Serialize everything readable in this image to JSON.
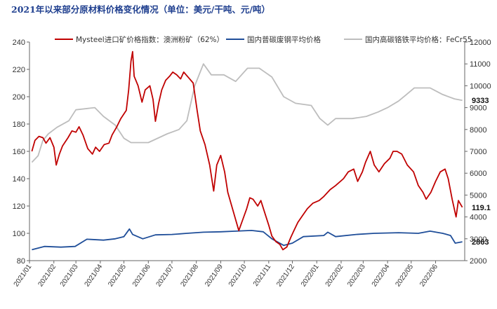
{
  "chart_data": {
    "type": "line",
    "title": "2021年以来部分原材料价格变化情况（单位：美元/干吨、元/吨）",
    "xlabel": "",
    "ylabel": "",
    "x_ticks": [
      "2021/01",
      "2021/02",
      "2021/03",
      "2021/04",
      "2021/05",
      "2021/06",
      "2021/07",
      "2021/08",
      "2021/09",
      "2021/10",
      "2021/11",
      "2021/12",
      "2022/01",
      "2022/02",
      "2022/03",
      "2022/04",
      "2022/05",
      "2022/06"
    ],
    "y_left": {
      "range": [
        80,
        240
      ],
      "ticks": [
        80,
        100,
        120,
        140,
        160,
        180,
        200,
        220,
        240
      ]
    },
    "y_right": {
      "range": [
        2000,
        12000
      ],
      "ticks": [
        2000,
        3000,
        4000,
        5000,
        6000,
        7000,
        8000,
        9000,
        10000,
        11000,
        12000
      ]
    },
    "legend_position": "top",
    "grid": false,
    "series": [
      {
        "name": "Mysteel进口矿价格指数：澳洲粉矿（62%）",
        "axis": "left",
        "color": "#c00000",
        "end_label": "119.1",
        "points": [
          [
            "2021-01-04",
            160
          ],
          [
            "2021-01-08",
            168
          ],
          [
            "2021-01-13",
            171
          ],
          [
            "2021-01-18",
            170
          ],
          [
            "2021-01-22",
            166
          ],
          [
            "2021-01-27",
            170
          ],
          [
            "2021-02-01",
            163
          ],
          [
            "2021-02-04",
            150
          ],
          [
            "2021-02-08",
            158
          ],
          [
            "2021-02-12",
            164
          ],
          [
            "2021-02-19",
            170
          ],
          [
            "2021-02-24",
            175
          ],
          [
            "2021-03-01",
            174
          ],
          [
            "2021-03-05",
            178
          ],
          [
            "2021-03-10",
            172
          ],
          [
            "2021-03-16",
            162
          ],
          [
            "2021-03-22",
            158
          ],
          [
            "2021-03-26",
            163
          ],
          [
            "2021-03-31",
            160
          ],
          [
            "2021-04-06",
            165
          ],
          [
            "2021-04-12",
            166
          ],
          [
            "2021-04-16",
            172
          ],
          [
            "2021-04-22",
            178
          ],
          [
            "2021-04-27",
            184
          ],
          [
            "2021-05-04",
            190
          ],
          [
            "2021-05-07",
            205
          ],
          [
            "2021-05-10",
            226
          ],
          [
            "2021-05-12",
            233
          ],
          [
            "2021-05-14",
            215
          ],
          [
            "2021-05-19",
            208
          ],
          [
            "2021-05-24",
            196
          ],
          [
            "2021-05-28",
            205
          ],
          [
            "2021-06-03",
            208
          ],
          [
            "2021-06-07",
            198
          ],
          [
            "2021-06-10",
            182
          ],
          [
            "2021-06-14",
            195
          ],
          [
            "2021-06-18",
            205
          ],
          [
            "2021-06-23",
            212
          ],
          [
            "2021-06-28",
            215
          ],
          [
            "2021-07-02",
            218
          ],
          [
            "2021-07-07",
            216
          ],
          [
            "2021-07-12",
            213
          ],
          [
            "2021-07-16",
            218
          ],
          [
            "2021-07-22",
            214
          ],
          [
            "2021-07-28",
            210
          ],
          [
            "2021-08-02",
            190
          ],
          [
            "2021-08-06",
            175
          ],
          [
            "2021-08-12",
            165
          ],
          [
            "2021-08-18",
            150
          ],
          [
            "2021-08-23",
            131
          ],
          [
            "2021-08-27",
            150
          ],
          [
            "2021-09-01",
            157
          ],
          [
            "2021-09-06",
            145
          ],
          [
            "2021-09-10",
            130
          ],
          [
            "2021-09-15",
            120
          ],
          [
            "2021-09-20",
            110
          ],
          [
            "2021-09-24",
            102
          ],
          [
            "2021-09-29",
            110
          ],
          [
            "2021-10-04",
            118
          ],
          [
            "2021-10-08",
            126
          ],
          [
            "2021-10-12",
            125
          ],
          [
            "2021-10-18",
            120
          ],
          [
            "2021-10-22",
            124
          ],
          [
            "2021-10-27",
            115
          ],
          [
            "2021-11-01",
            106
          ],
          [
            "2021-11-05",
            98
          ],
          [
            "2021-11-10",
            94
          ],
          [
            "2021-11-15",
            92
          ],
          [
            "2021-11-19",
            88
          ],
          [
            "2021-11-24",
            90
          ],
          [
            "2021-11-29",
            97
          ],
          [
            "2021-12-03",
            102
          ],
          [
            "2021-12-08",
            108
          ],
          [
            "2021-12-14",
            113
          ],
          [
            "2021-12-20",
            118
          ],
          [
            "2021-12-27",
            122
          ],
          [
            "2022-01-04",
            124
          ],
          [
            "2022-01-10",
            127
          ],
          [
            "2022-01-18",
            132
          ],
          [
            "2022-01-25",
            135
          ],
          [
            "2022-02-04",
            140
          ],
          [
            "2022-02-10",
            145
          ],
          [
            "2022-02-17",
            147
          ],
          [
            "2022-02-22",
            138
          ],
          [
            "2022-02-28",
            145
          ],
          [
            "2022-03-04",
            152
          ],
          [
            "2022-03-10",
            160
          ],
          [
            "2022-03-15",
            150
          ],
          [
            "2022-03-21",
            145
          ],
          [
            "2022-03-28",
            151
          ],
          [
            "2022-04-04",
            155
          ],
          [
            "2022-04-08",
            160
          ],
          [
            "2022-04-13",
            160
          ],
          [
            "2022-04-19",
            158
          ],
          [
            "2022-04-26",
            150
          ],
          [
            "2022-05-04",
            145
          ],
          [
            "2022-05-10",
            135
          ],
          [
            "2022-05-16",
            130
          ],
          [
            "2022-05-20",
            125
          ],
          [
            "2022-05-26",
            130
          ],
          [
            "2022-06-01",
            138
          ],
          [
            "2022-06-07",
            145
          ],
          [
            "2022-06-13",
            147
          ],
          [
            "2022-06-17",
            140
          ],
          [
            "2022-06-22",
            125
          ],
          [
            "2022-06-27",
            112
          ],
          [
            "2022-06-30",
            124
          ],
          [
            "2022-07-05",
            119.1
          ]
        ]
      },
      {
        "name": "国内普碳废钢平均价格",
        "axis": "right",
        "color": "#1f4e99",
        "end_label": "2863",
        "points": [
          [
            "2021-01-04",
            2500
          ],
          [
            "2021-01-20",
            2650
          ],
          [
            "2021-02-10",
            2620
          ],
          [
            "2021-02-28",
            2650
          ],
          [
            "2021-03-15",
            2980
          ],
          [
            "2021-04-05",
            2940
          ],
          [
            "2021-04-20",
            3000
          ],
          [
            "2021-05-01",
            3100
          ],
          [
            "2021-05-08",
            3450
          ],
          [
            "2021-05-12",
            3200
          ],
          [
            "2021-05-25",
            3000
          ],
          [
            "2021-06-10",
            3180
          ],
          [
            "2021-07-01",
            3200
          ],
          [
            "2021-07-20",
            3250
          ],
          [
            "2021-08-10",
            3300
          ],
          [
            "2021-09-01",
            3320
          ],
          [
            "2021-09-20",
            3350
          ],
          [
            "2021-10-10",
            3380
          ],
          [
            "2021-10-25",
            3320
          ],
          [
            "2021-11-05",
            3000
          ],
          [
            "2021-11-20",
            2700
          ],
          [
            "2021-12-01",
            2800
          ],
          [
            "2021-12-15",
            3100
          ],
          [
            "2022-01-10",
            3150
          ],
          [
            "2022-01-15",
            3300
          ],
          [
            "2022-01-25",
            3100
          ],
          [
            "2022-02-20",
            3200
          ],
          [
            "2022-03-15",
            3250
          ],
          [
            "2022-04-15",
            3280
          ],
          [
            "2022-05-10",
            3250
          ],
          [
            "2022-05-25",
            3350
          ],
          [
            "2022-06-10",
            3250
          ],
          [
            "2022-06-20",
            3150
          ],
          [
            "2022-06-26",
            2800
          ],
          [
            "2022-07-05",
            2863
          ]
        ]
      },
      {
        "name": "国内高碳铬铁平均价格：FeCr55",
        "axis": "right",
        "color": "#bdbdbd",
        "end_label": "9333",
        "points": [
          [
            "2021-01-04",
            6500
          ],
          [
            "2021-01-12",
            6800
          ],
          [
            "2021-01-18",
            7500
          ],
          [
            "2021-01-25",
            7800
          ],
          [
            "2021-02-05",
            8100
          ],
          [
            "2021-02-20",
            8400
          ],
          [
            "2021-03-01",
            8900
          ],
          [
            "2021-03-25",
            9000
          ],
          [
            "2021-04-05",
            8600
          ],
          [
            "2021-04-20",
            8200
          ],
          [
            "2021-05-01",
            7600
          ],
          [
            "2021-05-10",
            7400
          ],
          [
            "2021-06-01",
            7400
          ],
          [
            "2021-06-25",
            7800
          ],
          [
            "2021-07-10",
            8000
          ],
          [
            "2021-07-20",
            8400
          ],
          [
            "2021-07-30",
            10000
          ],
          [
            "2021-08-10",
            11000
          ],
          [
            "2021-08-20",
            10500
          ],
          [
            "2021-09-05",
            10500
          ],
          [
            "2021-09-20",
            10200
          ],
          [
            "2021-10-05",
            10800
          ],
          [
            "2021-10-20",
            10800
          ],
          [
            "2021-11-05",
            10400
          ],
          [
            "2021-11-20",
            9500
          ],
          [
            "2021-12-05",
            9200
          ],
          [
            "2021-12-25",
            9100
          ],
          [
            "2022-01-05",
            8500
          ],
          [
            "2022-01-15",
            8200
          ],
          [
            "2022-01-25",
            8500
          ],
          [
            "2022-02-15",
            8500
          ],
          [
            "2022-03-05",
            8600
          ],
          [
            "2022-03-20",
            8800
          ],
          [
            "2022-04-01",
            9000
          ],
          [
            "2022-04-15",
            9300
          ],
          [
            "2022-04-25",
            9600
          ],
          [
            "2022-05-05",
            9900
          ],
          [
            "2022-05-25",
            9900
          ],
          [
            "2022-06-10",
            9600
          ],
          [
            "2022-06-25",
            9400
          ],
          [
            "2022-07-05",
            9333
          ]
        ]
      }
    ]
  }
}
